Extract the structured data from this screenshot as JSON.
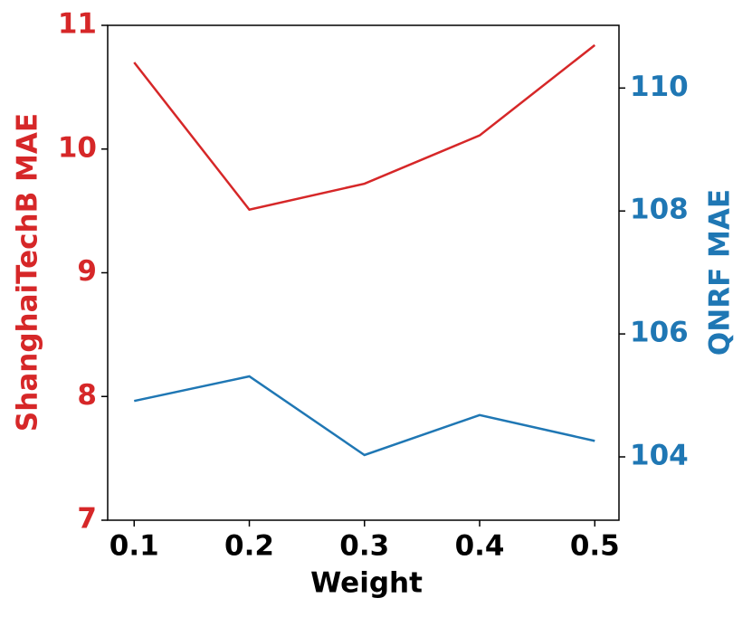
{
  "chart_data": {
    "type": "line",
    "x": [
      0.1,
      0.2,
      0.3,
      0.4,
      0.5
    ],
    "x_label": "Weight",
    "y_label": "ShanghaiTechB MAE",
    "y2_label": "QNRF MAE",
    "xlim": [
      0.077,
      0.521
    ],
    "xticks": [
      0.1,
      0.2,
      0.3,
      0.4,
      0.5
    ],
    "ylim": [
      7,
      11
    ],
    "yticks": [
      7,
      8,
      9,
      10,
      11
    ],
    "y2lim": [
      102.97,
      111.02
    ],
    "y2ticks": [
      104,
      106,
      108,
      110
    ],
    "y_color": "#d62728",
    "y2_color": "#1f77b4",
    "series": [
      {
        "name": "ShanghaiTechB MAE",
        "color": "#d62728",
        "values": [
          10.7,
          9.51,
          9.72,
          10.11,
          10.84
        ]
      },
      {
        "name": "QNRF MAE",
        "color": "#1f77b4",
        "axis": "y2",
        "values": [
          104.91,
          105.31,
          104.03,
          104.68,
          104.26
        ]
      }
    ]
  }
}
